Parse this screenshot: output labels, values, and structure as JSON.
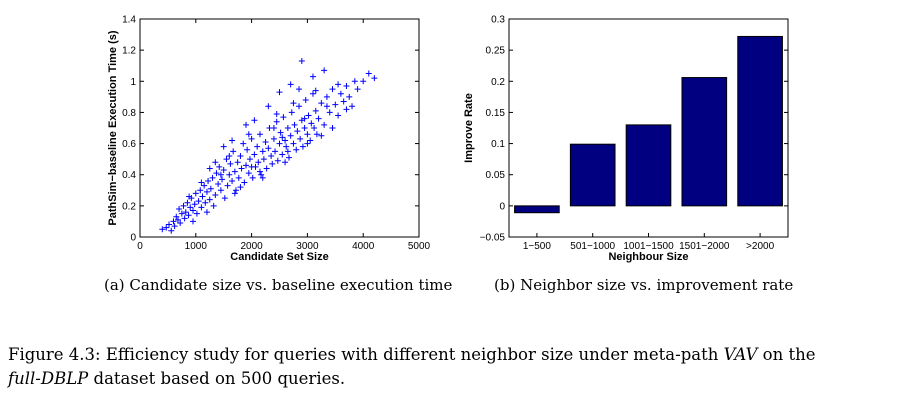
{
  "charts": {
    "scatter": {
      "subcaption": "(a) Candidate size vs. baseline execution time",
      "xlabel": "Candidate Set Size",
      "ylabel": "PathSim−baseline Execution Time (s)"
    },
    "bar": {
      "subcaption": "(b) Neighbor size vs. improvement rate",
      "xlabel": "Neighbour Size",
      "ylabel": "Improve Rate"
    }
  },
  "caption": {
    "prefix": "Figure 4.3: Efficiency study for queries with different neighbor size under meta-path ",
    "metapath": "VAV",
    "middle": " on the",
    "dataset": "full-DBLP",
    "suffix": " dataset based on 500 queries."
  },
  "colors": {
    "series": "#0000ff",
    "bar_fill": "#000080",
    "axes": "#000000"
  },
  "chart_data": [
    {
      "type": "scatter",
      "marker": "+",
      "xlabel": "Candidate Set Size",
      "ylabel": "PathSim−baseline Execution Time (s)",
      "xlim": [
        0,
        5000
      ],
      "ylim": [
        0,
        1.4
      ],
      "xticks": [
        0,
        1000,
        2000,
        3000,
        4000,
        5000
      ],
      "yticks": [
        0,
        0.2,
        0.4,
        0.6,
        0.8,
        1,
        1.2,
        1.4
      ],
      "xtick_labels": [
        "0",
        "1000",
        "2000",
        "3000",
        "4000",
        "5000"
      ],
      "ytick_labels": [
        "0",
        "0.2",
        "0.4",
        "0.6",
        "0.8",
        "1",
        "1.2",
        "1.4"
      ],
      "points": [
        [
          400,
          0.05
        ],
        [
          470,
          0.06
        ],
        [
          520,
          0.08
        ],
        [
          560,
          0.04
        ],
        [
          600,
          0.1
        ],
        [
          620,
          0.07
        ],
        [
          650,
          0.13
        ],
        [
          680,
          0.11
        ],
        [
          700,
          0.18
        ],
        [
          720,
          0.09
        ],
        [
          750,
          0.15
        ],
        [
          780,
          0.2
        ],
        [
          800,
          0.12
        ],
        [
          820,
          0.16
        ],
        [
          850,
          0.22
        ],
        [
          870,
          0.14
        ],
        [
          900,
          0.19
        ],
        [
          920,
          0.25
        ],
        [
          950,
          0.17
        ],
        [
          980,
          0.21
        ],
        [
          1000,
          0.28
        ],
        [
          1020,
          0.15
        ],
        [
          1050,
          0.23
        ],
        [
          1080,
          0.3
        ],
        [
          1100,
          0.19
        ],
        [
          1120,
          0.26
        ],
        [
          1150,
          0.33
        ],
        [
          1170,
          0.22
        ],
        [
          1200,
          0.29
        ],
        [
          1220,
          0.36
        ],
        [
          1250,
          0.24
        ],
        [
          1270,
          0.31
        ],
        [
          1300,
          0.38
        ],
        [
          1320,
          0.2
        ],
        [
          1350,
          0.27
        ],
        [
          1370,
          0.41
        ],
        [
          1400,
          0.34
        ],
        [
          1420,
          0.45
        ],
        [
          1450,
          0.3
        ],
        [
          1470,
          0.37
        ],
        [
          1500,
          0.43
        ],
        [
          1520,
          0.25
        ],
        [
          1550,
          0.5
        ],
        [
          1570,
          0.33
        ],
        [
          1600,
          0.4
        ],
        [
          1620,
          0.47
        ],
        [
          1650,
          0.36
        ],
        [
          1670,
          0.55
        ],
        [
          1700,
          0.42
        ],
        [
          1720,
          0.3
        ],
        [
          1750,
          0.48
        ],
        [
          1770,
          0.38
        ],
        [
          1800,
          0.52
        ],
        [
          1820,
          0.44
        ],
        [
          1850,
          0.6
        ],
        [
          1870,
          0.35
        ],
        [
          1900,
          0.46
        ],
        [
          1920,
          0.56
        ],
        [
          1950,
          0.41
        ],
        [
          1970,
          0.5
        ],
        [
          2000,
          0.63
        ],
        [
          2020,
          0.38
        ],
        [
          2050,
          0.53
        ],
        [
          2070,
          0.45
        ],
        [
          2100,
          0.58
        ],
        [
          2120,
          0.48
        ],
        [
          2150,
          0.66
        ],
        [
          2170,
          0.4
        ],
        [
          2200,
          0.55
        ],
        [
          2220,
          0.5
        ],
        [
          2250,
          0.61
        ],
        [
          2270,
          0.44
        ],
        [
          2300,
          0.57
        ],
        [
          2320,
          0.7
        ],
        [
          2350,
          0.52
        ],
        [
          2370,
          0.47
        ],
        [
          2400,
          0.63
        ],
        [
          2420,
          0.55
        ],
        [
          2450,
          0.74
        ],
        [
          2470,
          0.49
        ],
        [
          2500,
          0.6
        ],
        [
          2520,
          0.67
        ],
        [
          2550,
          0.53
        ],
        [
          2570,
          0.77
        ],
        [
          2600,
          0.62
        ],
        [
          2620,
          0.58
        ],
        [
          2650,
          0.7
        ],
        [
          2670,
          0.51
        ],
        [
          2700,
          0.65
        ],
        [
          2720,
          0.8
        ],
        [
          2750,
          0.6
        ],
        [
          2770,
          0.72
        ],
        [
          2800,
          0.56
        ],
        [
          2820,
          0.68
        ],
        [
          2850,
          0.84
        ],
        [
          2870,
          0.63
        ],
        [
          2900,
          0.75
        ],
        [
          2920,
          0.58
        ],
        [
          2950,
          0.7
        ],
        [
          2970,
          0.88
        ],
        [
          3000,
          0.66
        ],
        [
          3020,
          0.78
        ],
        [
          3050,
          0.62
        ],
        [
          3070,
          0.73
        ],
        [
          3100,
          0.92
        ],
        [
          3120,
          0.7
        ],
        [
          3150,
          0.81
        ],
        [
          3170,
          0.66
        ],
        [
          3200,
          0.76
        ],
        [
          3250,
          0.86
        ],
        [
          3300,
          0.72
        ],
        [
          3350,
          0.9
        ],
        [
          3400,
          0.8
        ],
        [
          3450,
          0.95
        ],
        [
          3500,
          0.85
        ],
        [
          3550,
          0.78
        ],
        [
          3600,
          0.92
        ],
        [
          3650,
          0.87
        ],
        [
          3700,
          0.97
        ],
        [
          3750,
          0.9
        ],
        [
          3800,
          0.84
        ],
        [
          3900,
          0.95
        ],
        [
          4000,
          1.0
        ],
        [
          4100,
          1.05
        ],
        [
          4200,
          1.02
        ],
        [
          2900,
          1.13
        ],
        [
          3300,
          1.07
        ],
        [
          2500,
          0.93
        ],
        [
          2300,
          0.84
        ],
        [
          2700,
          0.98
        ],
        [
          1900,
          0.72
        ],
        [
          1500,
          0.58
        ],
        [
          1250,
          0.44
        ],
        [
          3450,
          0.7
        ],
        [
          3000,
          0.6
        ],
        [
          2600,
          0.48
        ],
        [
          2200,
          0.38
        ],
        [
          1700,
          0.28
        ],
        [
          1200,
          0.16
        ],
        [
          950,
          0.1
        ],
        [
          1100,
          0.35
        ],
        [
          1650,
          0.62
        ],
        [
          2050,
          0.75
        ],
        [
          3100,
          1.03
        ],
        [
          3550,
          0.98
        ],
        [
          2850,
          0.95
        ],
        [
          2400,
          0.7
        ],
        [
          1800,
          0.32
        ],
        [
          2150,
          0.42
        ],
        [
          2650,
          0.55
        ],
        [
          3250,
          0.65
        ],
        [
          3700,
          0.82
        ],
        [
          1350,
          0.48
        ],
        [
          1950,
          0.66
        ],
        [
          2450,
          0.79
        ],
        [
          2750,
          0.86
        ],
        [
          3150,
          0.94
        ],
        [
          3850,
          1.0
        ],
        [
          880,
          0.26
        ],
        [
          1600,
          0.52
        ],
        [
          2000,
          0.45
        ],
        [
          2550,
          0.64
        ],
        [
          2950,
          0.76
        ],
        [
          3350,
          0.84
        ],
        [
          1450,
          0.4
        ]
      ]
    },
    {
      "type": "bar",
      "xlabel": "Neighbour Size",
      "ylabel": "Improve Rate",
      "categories": [
        "1−500",
        "501−1000",
        "1001−1500",
        "1501−2000",
        ">2000"
      ],
      "values": [
        -0.011,
        0.099,
        0.13,
        0.206,
        0.272
      ],
      "ylim": [
        -0.05,
        0.3
      ],
      "yticks": [
        -0.05,
        0,
        0.05,
        0.1,
        0.15,
        0.2,
        0.25,
        0.3
      ],
      "ytick_labels": [
        "−0.05",
        "0",
        "0.05",
        "0.1",
        "0.15",
        "0.2",
        "0.25",
        "0.3"
      ]
    }
  ]
}
